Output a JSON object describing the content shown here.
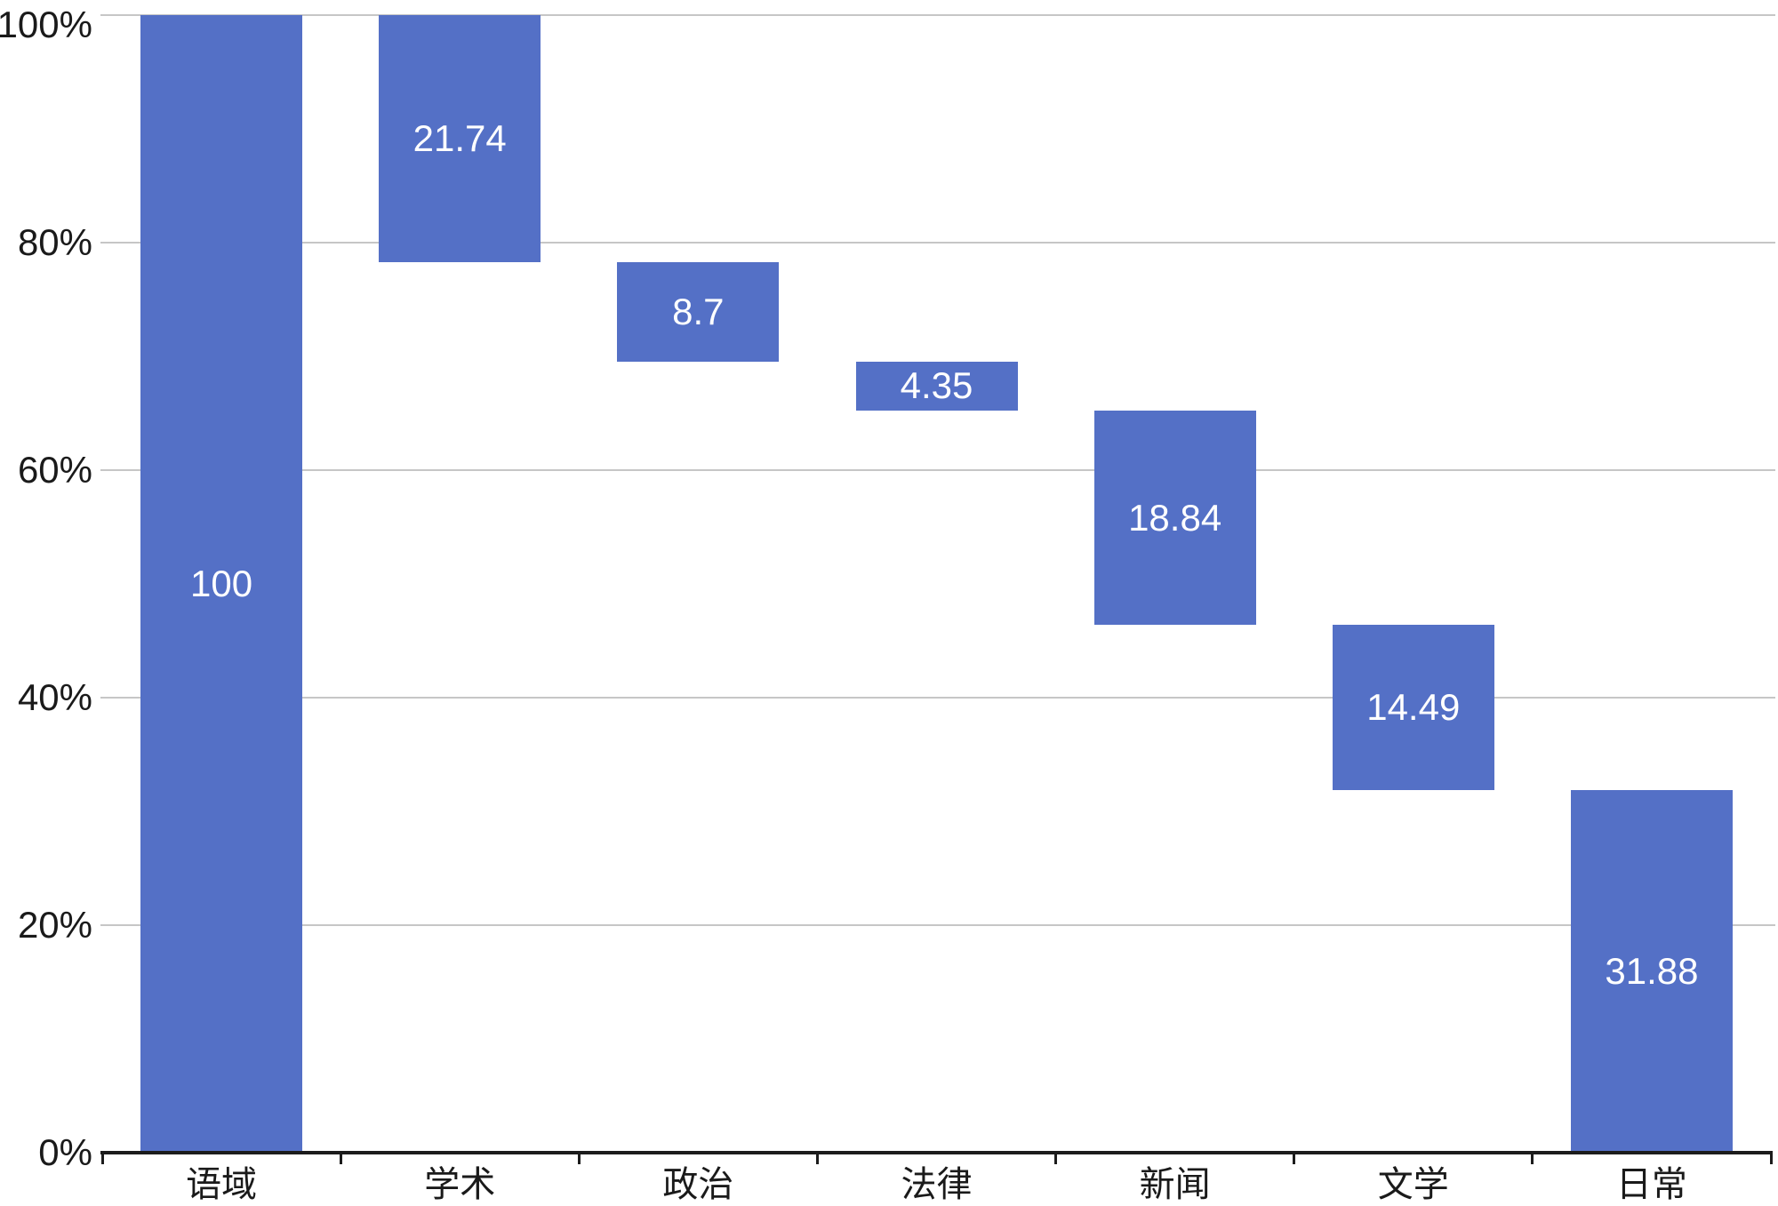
{
  "chart_data": {
    "type": "bar",
    "subtype": "waterfall",
    "title": "",
    "categories": [
      "语域",
      "学术",
      "政治",
      "法律",
      "新闻",
      "文学",
      "日常"
    ],
    "values": [
      100,
      21.74,
      8.7,
      4.35,
      18.84,
      14.49,
      31.88
    ],
    "bar_labels": [
      "100",
      "21.74",
      "8.7",
      "4.35",
      "18.84",
      "14.49",
      "31.88"
    ],
    "segments": [
      {
        "category": "语域",
        "from": 0,
        "to": 100
      },
      {
        "category": "学术",
        "from": 78.26,
        "to": 100
      },
      {
        "category": "政治",
        "from": 69.56,
        "to": 78.26
      },
      {
        "category": "法律",
        "from": 65.21,
        "to": 69.56
      },
      {
        "category": "新闻",
        "from": 46.37,
        "to": 65.21
      },
      {
        "category": "文学",
        "from": 31.88,
        "to": 46.37
      },
      {
        "category": "日常",
        "from": 0,
        "to": 31.88
      }
    ],
    "y_axis": {
      "min": 0,
      "max": 100,
      "tick_values": [
        0,
        20,
        40,
        60,
        80,
        100
      ],
      "tick_labels": [
        "0%",
        "20%",
        "40%",
        "60%",
        "80%",
        "100%"
      ]
    },
    "x_axis": {
      "tick_count": 8
    },
    "grid": true,
    "legend": null,
    "colors": {
      "bar": "#5470C6",
      "bar_label": "#FFFFFF",
      "gridline": "#C6C6C6",
      "axis_line": "#1C1C1C",
      "axis_text": "#1A1A1A",
      "background": "#FFFFFF"
    }
  }
}
